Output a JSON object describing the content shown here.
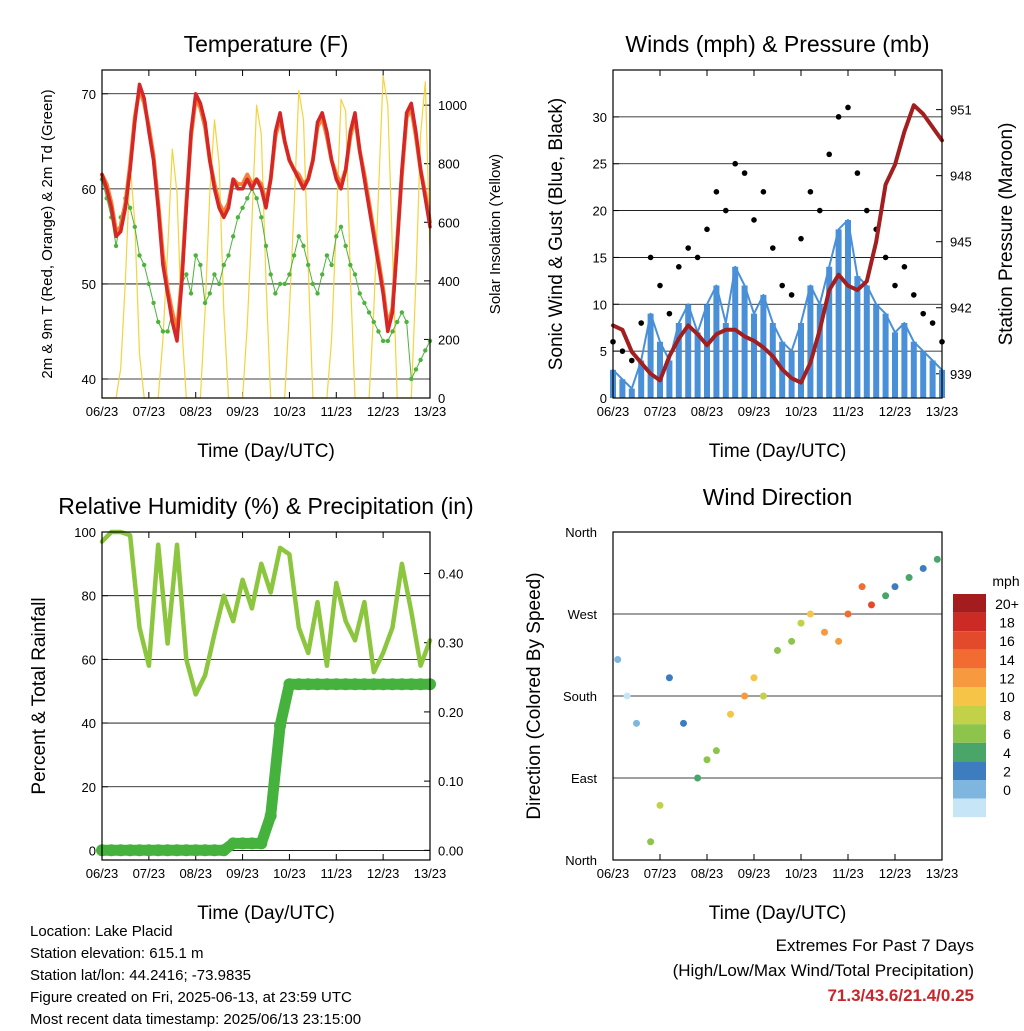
{
  "chart_data": [
    {
      "type": "line",
      "title": "Temperature (F)",
      "xlabel": "Time (Day/UTC)",
      "ylabel": "2m & 9m T (Red, Orange) & 2m Td (Green)",
      "y2label": "Solar Insolation (Yellow)",
      "categories": [
        "06/23",
        "07/23",
        "08/23",
        "09/23",
        "10/23",
        "11/23",
        "12/23",
        "13/23"
      ],
      "ylim": [
        38,
        72.5
      ],
      "yticks": [
        40,
        50,
        60,
        70
      ],
      "y2lim": [
        0,
        1120
      ],
      "y2ticks": [
        0,
        200,
        400,
        600,
        800,
        1000
      ],
      "x": [
        0,
        0.1,
        0.2,
        0.3,
        0.4,
        0.5,
        0.6,
        0.7,
        0.8,
        0.9,
        1,
        1.1,
        1.2,
        1.3,
        1.4,
        1.5,
        1.6,
        1.7,
        1.8,
        1.9,
        2,
        2.1,
        2.2,
        2.3,
        2.4,
        2.5,
        2.6,
        2.7,
        2.8,
        2.9,
        3,
        3.1,
        3.2,
        3.3,
        3.4,
        3.5,
        3.6,
        3.7,
        3.8,
        3.9,
        4,
        4.1,
        4.2,
        4.3,
        4.4,
        4.5,
        4.6,
        4.7,
        4.8,
        4.9,
        5,
        5.1,
        5.2,
        5.3,
        5.4,
        5.5,
        5.6,
        5.7,
        5.8,
        5.9,
        6,
        6.1,
        6.2,
        6.3,
        6.4,
        6.5,
        6.6,
        6.7,
        6.8,
        6.9,
        7
      ],
      "series": [
        {
          "name": "2m T",
          "color": "#d62728",
          "values": [
            61.5,
            60,
            58,
            55,
            55.5,
            58,
            62,
            67,
            71,
            69.5,
            66,
            63,
            58,
            52,
            49,
            46,
            44,
            50,
            58,
            66,
            70,
            69,
            67,
            63,
            60,
            58,
            57,
            58,
            61,
            60,
            60,
            61,
            60,
            61,
            60,
            58,
            61,
            66,
            68,
            65,
            63,
            62,
            61,
            60,
            61,
            63,
            67,
            68,
            66,
            63,
            61,
            60,
            62,
            66,
            68,
            64,
            61,
            58,
            55,
            52,
            49,
            45,
            47,
            54,
            62,
            68,
            69,
            66,
            62,
            59,
            56
          ]
        },
        {
          "name": "9m T",
          "color": "#f58231",
          "values": [
            61.5,
            60.5,
            58.5,
            55.5,
            56,
            58.5,
            62.5,
            67.5,
            70.5,
            69,
            66.5,
            63.5,
            58.5,
            53,
            49.5,
            47,
            45,
            50.5,
            58.5,
            65.5,
            69.5,
            68.5,
            66.5,
            63,
            60.5,
            58.5,
            57.5,
            58.5,
            61,
            60.5,
            60.5,
            61.5,
            60.5,
            61,
            60.5,
            58.5,
            61,
            65.5,
            67.5,
            65,
            63,
            62,
            61.5,
            60.5,
            61,
            63,
            66.5,
            67.5,
            65.5,
            63,
            61.5,
            60.5,
            62,
            65.5,
            67.5,
            64,
            61.5,
            58.5,
            55.5,
            52.5,
            49.5,
            45.5,
            47.5,
            54.5,
            61.5,
            67.5,
            68.5,
            65.5,
            62,
            59.5,
            56.5
          ]
        },
        {
          "name": "2m Td",
          "color": "#4db33d",
          "values": [
            61,
            59,
            57,
            54,
            57,
            59,
            58,
            56,
            53,
            52,
            50,
            48,
            46,
            45,
            45,
            47,
            46,
            50,
            51,
            49,
            53,
            52,
            48,
            49,
            51,
            50,
            52,
            53,
            55,
            57,
            58,
            59,
            60,
            59,
            57,
            54,
            51,
            49,
            50,
            50,
            51,
            53,
            55,
            54,
            52,
            50,
            49,
            51,
            53,
            52,
            55,
            56,
            54,
            52,
            51,
            49,
            48,
            47,
            46,
            45,
            44,
            44,
            45,
            46,
            47,
            46,
            40,
            41,
            42,
            43,
            44
          ]
        },
        {
          "name": "Solar Insolation",
          "color": "#f5d33b",
          "values": [
            0,
            0,
            0,
            0,
            100,
            400,
            800,
            600,
            150,
            0,
            0,
            0,
            0,
            200,
            500,
            850,
            700,
            250,
            0,
            0,
            0,
            0,
            300,
            700,
            950,
            800,
            300,
            0,
            0,
            0,
            0,
            250,
            600,
            1000,
            900,
            400,
            0,
            0,
            0,
            0,
            300,
            650,
            1050,
            950,
            450,
            0,
            0,
            0,
            0,
            200,
            600,
            1020,
            980,
            420,
            0,
            0,
            0,
            0,
            300,
            700,
            1100,
            1000,
            500,
            0,
            0,
            0,
            0,
            400,
            900,
            1080,
            500
          ]
        }
      ]
    },
    {
      "type": "scatter",
      "title": "Winds (mph) & Pressure (mb)",
      "xlabel": "Time (Day/UTC)",
      "ylabel": "Sonic Wind & Gust (Blue, Black)",
      "y2label": "Station Pressure (Maroon)",
      "categories": [
        "06/23",
        "07/23",
        "08/23",
        "09/23",
        "10/23",
        "11/23",
        "12/23",
        "13/23"
      ],
      "ylim": [
        0,
        35
      ],
      "yticks": [
        0,
        5,
        10,
        15,
        20,
        25,
        30
      ],
      "y2lim": [
        937.9,
        952.8
      ],
      "y2ticks": [
        939,
        942,
        945,
        948,
        951
      ],
      "x": [
        0,
        0.2,
        0.4,
        0.6,
        0.8,
        1,
        1.2,
        1.4,
        1.6,
        1.8,
        2,
        2.2,
        2.4,
        2.6,
        2.8,
        3,
        3.2,
        3.4,
        3.6,
        3.8,
        4,
        4.2,
        4.4,
        4.6,
        4.8,
        5,
        5.2,
        5.4,
        5.6,
        5.8,
        6,
        6.2,
        6.4,
        6.6,
        6.8,
        7
      ],
      "series": [
        {
          "name": "Sonic Wind",
          "color": "#4a90d9",
          "values": [
            3,
            2,
            1,
            4,
            9,
            6,
            4,
            8,
            10,
            7,
            10,
            12,
            8,
            14,
            12,
            9,
            11,
            8,
            6,
            5,
            8,
            12,
            10,
            14,
            18,
            19,
            13,
            12,
            10,
            9,
            7,
            8,
            6,
            5,
            4,
            3
          ]
        },
        {
          "name": "Gust",
          "color": "#000000",
          "values": [
            6,
            5,
            4,
            8,
            15,
            12,
            9,
            14,
            16,
            15,
            18,
            22,
            20,
            25,
            24,
            19,
            22,
            16,
            12,
            11,
            17,
            22,
            20,
            26,
            30,
            31,
            24,
            20,
            18,
            15,
            12,
            14,
            11,
            9,
            8,
            6
          ]
        },
        {
          "name": "Station Pressure",
          "color": "#a31f1f",
          "values": [
            941.2,
            941,
            940,
            939.5,
            939,
            938.7,
            939.8,
            940.6,
            941.2,
            940.8,
            940.3,
            940.8,
            941,
            941,
            940.7,
            940.5,
            940.2,
            939.8,
            939.2,
            938.8,
            938.6,
            939.5,
            941,
            942.8,
            943.5,
            943,
            942.8,
            943.2,
            945,
            947.6,
            948.5,
            950,
            951.2,
            950.8,
            950.2,
            949.6
          ]
        }
      ]
    },
    {
      "type": "line",
      "title": "Relative Humidity (%) & Precipitation (in)",
      "xlabel": "Time (Day/UTC)",
      "ylabel": "Percent & Total Rainfall",
      "categories": [
        "06/23",
        "07/23",
        "08/23",
        "09/23",
        "10/23",
        "11/23",
        "12/23",
        "13/23"
      ],
      "ylim": [
        -3,
        100
      ],
      "yticks": [
        0,
        20,
        40,
        60,
        80,
        100
      ],
      "y2lim": [
        -0.014,
        0.46
      ],
      "y2ticks": [
        "0.00",
        "0.10",
        "0.20",
        "0.30",
        "0.40"
      ],
      "x": [
        0,
        0.2,
        0.4,
        0.6,
        0.8,
        1,
        1.2,
        1.4,
        1.6,
        1.8,
        2,
        2.2,
        2.4,
        2.6,
        2.8,
        3,
        3.2,
        3.4,
        3.6,
        3.8,
        4,
        4.2,
        4.4,
        4.6,
        4.8,
        5,
        5.2,
        5.4,
        5.6,
        5.8,
        6,
        6.2,
        6.4,
        6.6,
        6.8,
        7
      ],
      "series": [
        {
          "name": "Relative Humidity",
          "color": "#8cc63e",
          "values": [
            97,
            100,
            100,
            99,
            70,
            58,
            96,
            65,
            96,
            60,
            49,
            55,
            68,
            80,
            72,
            85,
            76,
            90,
            81,
            95,
            93,
            70,
            62,
            78,
            58,
            84,
            72,
            66,
            78,
            56,
            62,
            70,
            90,
            75,
            58,
            66
          ]
        },
        {
          "name": "Total Precipitation",
          "color": "#46b23e",
          "values": [
            0,
            0,
            0,
            0,
            0,
            0,
            0,
            0,
            0,
            0,
            0,
            0,
            0,
            0,
            0.01,
            0.01,
            0.01,
            0.01,
            0.05,
            0.18,
            0.24,
            0.24,
            0.24,
            0.24,
            0.24,
            0.24,
            0.24,
            0.24,
            0.24,
            0.24,
            0.24,
            0.24,
            0.24,
            0.24,
            0.24,
            0.24
          ]
        }
      ]
    },
    {
      "type": "scatter",
      "title": "Wind Direction",
      "xlabel": "Time (Day/UTC)",
      "ylabel": "Direction (Colored By Speed)",
      "categories": [
        "06/23",
        "07/23",
        "08/23",
        "09/23",
        "10/23",
        "11/23",
        "12/23",
        "13/23"
      ],
      "yticks": [
        "North",
        "East",
        "South",
        "West",
        "North"
      ],
      "ylim": [
        0,
        360
      ],
      "colorbar": {
        "title": "mph",
        "labels": [
          "20+",
          "18",
          "16",
          "14",
          "12",
          "10",
          "8",
          "6",
          "4",
          "2",
          "0"
        ],
        "colors": [
          "#a51c1f",
          "#cb2a25",
          "#e34a2b",
          "#f26b30",
          "#f79a3f",
          "#f6c446",
          "#c2d147",
          "#8dc44b",
          "#4aa569",
          "#3d7dbf",
          "#7fb6e0",
          "#c6e6f7"
        ]
      },
      "x": [
        0.1,
        0.3,
        0.5,
        0.8,
        1.0,
        1.2,
        1.5,
        1.8,
        2.0,
        2.2,
        2.5,
        2.8,
        3.0,
        3.2,
        3.5,
        3.8,
        4.0,
        4.2,
        4.5,
        4.8,
        5.0,
        5.3,
        5.5,
        5.8,
        6.0,
        6.3,
        6.6,
        6.9
      ],
      "values": [
        220,
        180,
        150,
        20,
        60,
        200,
        150,
        90,
        110,
        120,
        160,
        180,
        200,
        180,
        230,
        240,
        260,
        270,
        250,
        240,
        270,
        300,
        280,
        290,
        300,
        310,
        320,
        330
      ],
      "speeds": [
        2,
        1,
        3,
        8,
        10,
        4,
        5,
        7,
        9,
        8,
        12,
        14,
        13,
        10,
        9,
        8,
        11,
        13,
        15,
        14,
        16,
        17,
        18,
        6,
        5,
        7,
        4,
        6
      ]
    }
  ],
  "footer": {
    "location": "Location: Lake Placid",
    "elevation": "Station elevation: 615.1 m",
    "latlon": "Station lat/lon: 44.2416; -73.9835",
    "created": "Figure created on Fri, 2025-06-13, at 23:59 UTC",
    "recent": "Most recent data timestamp: 2025/06/13 23:15:00",
    "extremes_title": "Extremes For Past 7 Days",
    "extremes_sub": "(High/Low/Max Wind/Total Precipitation)",
    "extremes_values": "71.3/43.6/21.4/0.25"
  }
}
